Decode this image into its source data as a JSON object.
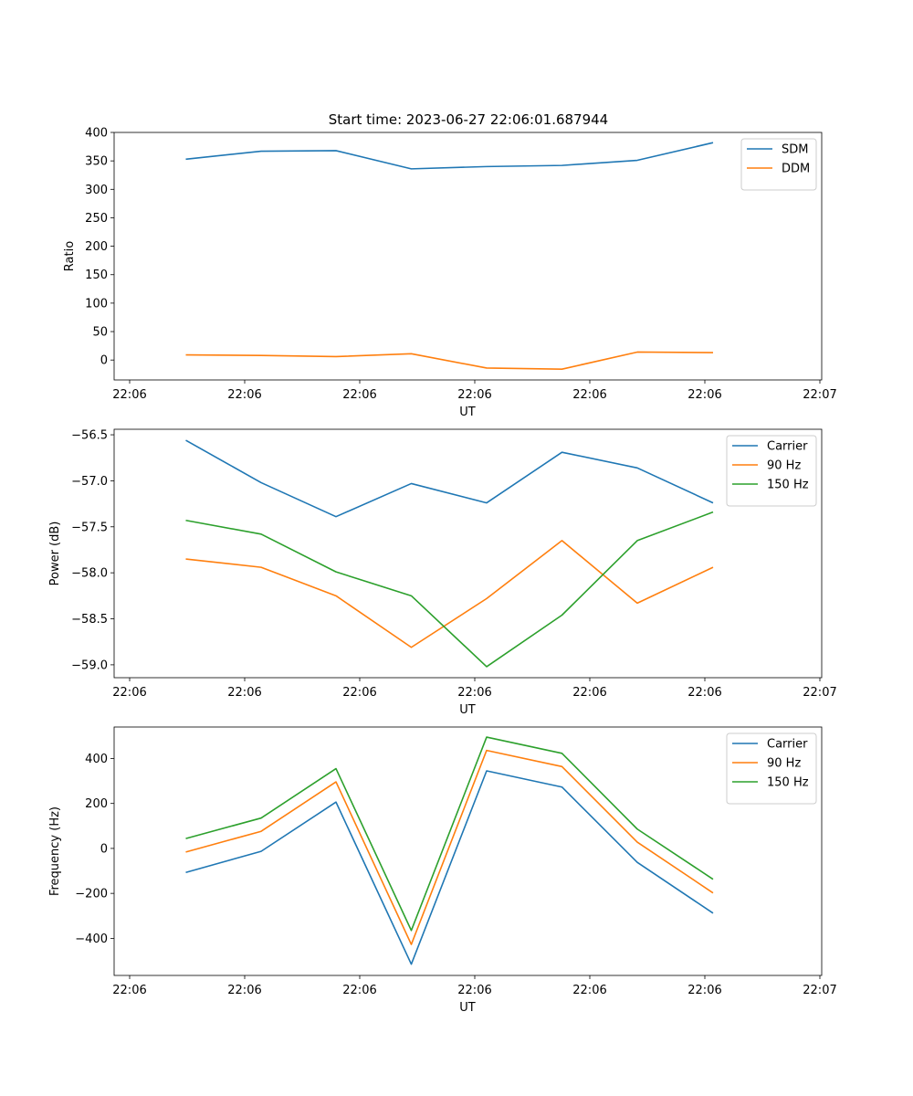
{
  "figure": {
    "title": "Start time: 2023-06-27 22:06:01.687944"
  },
  "chart_data": [
    {
      "type": "line",
      "xlabel": "UT",
      "ylabel": "Ratio",
      "x_tick_labels": [
        "22:06",
        "22:06",
        "22:06",
        "22:06",
        "22:06",
        "22:06",
        "22:07"
      ],
      "y_ticks": [
        0,
        50,
        100,
        150,
        200,
        250,
        300,
        350,
        400
      ],
      "y_tick_labels": [
        "0",
        "50",
        "100",
        "150",
        "200",
        "250",
        "300",
        "350",
        "400"
      ],
      "ylim": [
        -35,
        400
      ],
      "grid": false,
      "legend_position": "top-right",
      "series": [
        {
          "name": "SDM",
          "color": "#1f77b4",
          "values": [
            353,
            367,
            368,
            336,
            340,
            342,
            351,
            382
          ]
        },
        {
          "name": "DDM",
          "color": "#ff7f0e",
          "values": [
            9,
            8,
            6,
            11,
            -14,
            -16,
            14,
            13
          ]
        }
      ]
    },
    {
      "type": "line",
      "xlabel": "UT",
      "ylabel": "Power (dB)",
      "x_tick_labels": [
        "22:06",
        "22:06",
        "22:06",
        "22:06",
        "22:06",
        "22:06",
        "22:07"
      ],
      "y_ticks": [
        -59.0,
        -58.5,
        -58.0,
        -57.5,
        -57.0,
        -56.5
      ],
      "y_tick_labels": [
        "−59.0",
        "−58.5",
        "−58.0",
        "−57.5",
        "−57.0",
        "−56.5"
      ],
      "ylim": [
        -59.14,
        -56.44
      ],
      "grid": false,
      "legend_position": "top-right",
      "series": [
        {
          "name": "Carrier",
          "color": "#1f77b4",
          "values": [
            -56.56,
            -57.02,
            -57.39,
            -57.03,
            -57.24,
            -56.69,
            -56.86,
            -57.24
          ]
        },
        {
          "name": "90 Hz",
          "color": "#ff7f0e",
          "values": [
            -57.85,
            -57.94,
            -58.25,
            -58.81,
            -58.28,
            -57.65,
            -58.33,
            -57.94
          ]
        },
        {
          "name": "150 Hz",
          "color": "#2ca02c",
          "values": [
            -57.43,
            -57.58,
            -57.99,
            -58.25,
            -59.02,
            -58.46,
            -57.65,
            -57.34
          ]
        }
      ]
    },
    {
      "type": "line",
      "xlabel": "UT",
      "ylabel": "Frequency (Hz)",
      "x_tick_labels": [
        "22:06",
        "22:06",
        "22:06",
        "22:06",
        "22:06",
        "22:06",
        "22:07"
      ],
      "y_ticks": [
        -400,
        -200,
        0,
        200,
        400
      ],
      "y_tick_labels": [
        "−400",
        "−200",
        "0",
        "200",
        "400"
      ],
      "ylim": [
        -565,
        540
      ],
      "grid": false,
      "legend_position": "top-right",
      "series": [
        {
          "name": "Carrier",
          "color": "#1f77b4",
          "values": [
            -107,
            -13,
            206,
            -515,
            345,
            273,
            -62,
            -288
          ]
        },
        {
          "name": "90 Hz",
          "color": "#ff7f0e",
          "values": [
            -16,
            76,
            296,
            -427,
            436,
            364,
            28,
            -198
          ]
        },
        {
          "name": "150 Hz",
          "color": "#2ca02c",
          "values": [
            44,
            135,
            355,
            -365,
            495,
            423,
            86,
            -137
          ]
        }
      ]
    }
  ]
}
